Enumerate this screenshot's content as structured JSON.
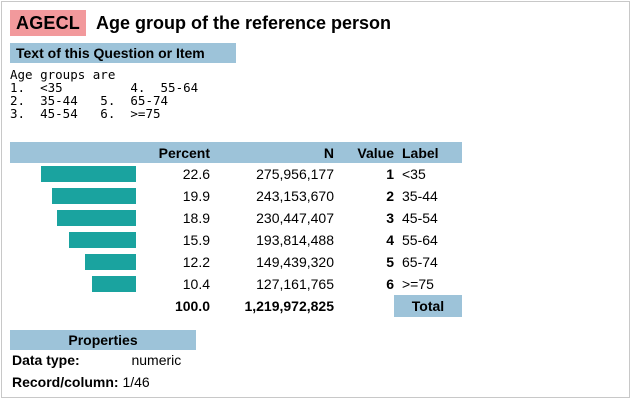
{
  "variable": {
    "name": "AGECL",
    "label": "Age group of the reference person"
  },
  "question": {
    "title": "Text of this Question or Item",
    "lines": [
      "Age groups are",
      "1.  <35         4.  55-64",
      "2.  35-44   5.  65-74",
      "3.  45-54   6.  >=75"
    ]
  },
  "table": {
    "headers": {
      "bar": "",
      "percent": "Percent",
      "n": "N",
      "value": "Value",
      "label": "Label"
    },
    "rows": [
      {
        "percent": "22.6",
        "n": "275,956,177",
        "value": "1",
        "label": "<35",
        "pct_num": 22.6
      },
      {
        "percent": "19.9",
        "n": "243,153,670",
        "value": "2",
        "label": "35-44",
        "pct_num": 19.9
      },
      {
        "percent": "18.9",
        "n": "230,447,407",
        "value": "3",
        "label": "45-54",
        "pct_num": 18.9
      },
      {
        "percent": "15.9",
        "n": "193,814,488",
        "value": "4",
        "label": "55-64",
        "pct_num": 15.9
      },
      {
        "percent": "12.2",
        "n": "149,439,320",
        "value": "5",
        "label": "65-74",
        "pct_num": 12.2
      },
      {
        "percent": "10.4",
        "n": "127,161,765",
        "value": "6",
        "label": ">=75",
        "pct_num": 10.4
      }
    ],
    "total": {
      "percent": "100.0",
      "n": "1,219,972,825",
      "label": "Total"
    },
    "bar_color": "#1aa39f"
  },
  "properties": {
    "title": "Properties",
    "data_type_key": "Data type:",
    "data_type_value": "numeric",
    "record_key": "Record/column:",
    "record_value": "1/46"
  },
  "colors": {
    "name_bg": "#f2999c",
    "section_bg": "#9dc3d9"
  }
}
